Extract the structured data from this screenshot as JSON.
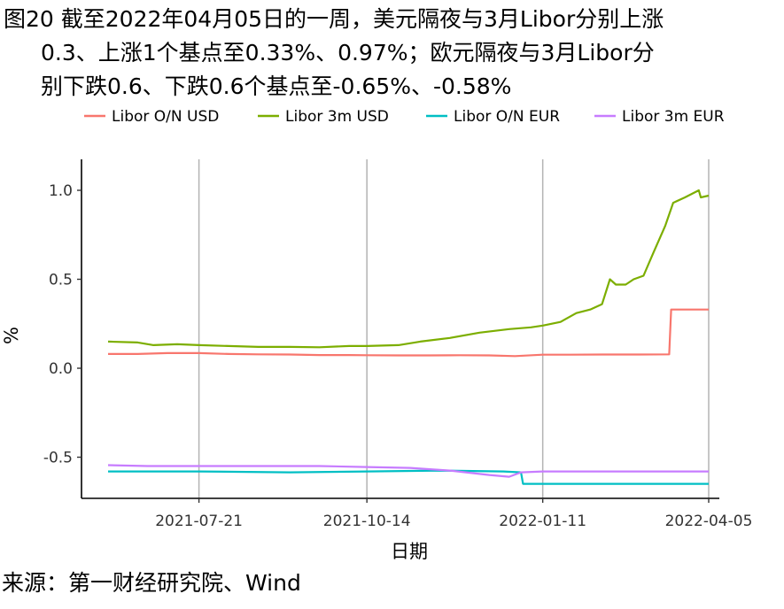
{
  "title": {
    "line1": "图20  截至2022年04月05日的一周，美元隔夜与3月Libor分别上涨",
    "line2": "0.3、上涨1个基点至0.33%、0.97%；欧元隔夜与3月Libor分",
    "line3": "别下跌0.6、下跌0.6个基点至-0.65%、-0.58%"
  },
  "source": "来源：第一财经研究院、Wind",
  "chart_data": {
    "type": "line",
    "xlabel": "日期",
    "ylabel": "%",
    "x_range": [
      "2021-06-05",
      "2022-04-05"
    ],
    "ylim": [
      -0.72,
      1.08
    ],
    "y_ticks": [
      -0.5,
      0.0,
      0.5,
      1.0
    ],
    "y_tick_labels": [
      "-0.5",
      "0.0",
      "0.5",
      "1.0"
    ],
    "x_ticks": [
      "2021-07-21",
      "2021-10-14",
      "2022-01-11",
      "2022-04-05"
    ],
    "grid": "vertical major lines only",
    "legend_position": "top",
    "series": [
      {
        "name": "Libor O/N USD",
        "color": "#F8766D",
        "points": [
          [
            "2021-06-05",
            0.08
          ],
          [
            "2021-06-20",
            0.08
          ],
          [
            "2021-07-05",
            0.085
          ],
          [
            "2021-07-21",
            0.085
          ],
          [
            "2021-08-05",
            0.08
          ],
          [
            "2021-08-20",
            0.078
          ],
          [
            "2021-09-05",
            0.077
          ],
          [
            "2021-09-20",
            0.074
          ],
          [
            "2021-10-05",
            0.074
          ],
          [
            "2021-10-14",
            0.073
          ],
          [
            "2021-10-30",
            0.072
          ],
          [
            "2021-11-15",
            0.072
          ],
          [
            "2021-11-30",
            0.073
          ],
          [
            "2021-12-15",
            0.072
          ],
          [
            "2021-12-28",
            0.068
          ],
          [
            "2022-01-11",
            0.076
          ],
          [
            "2022-01-25",
            0.076
          ],
          [
            "2022-02-10",
            0.077
          ],
          [
            "2022-03-01",
            0.077
          ],
          [
            "2022-03-16",
            0.078
          ],
          [
            "2022-03-17",
            0.33
          ],
          [
            "2022-03-25",
            0.33
          ],
          [
            "2022-04-05",
            0.33
          ]
        ]
      },
      {
        "name": "Libor 3m USD",
        "color": "#7CAE00",
        "points": [
          [
            "2021-06-05",
            0.15
          ],
          [
            "2021-06-20",
            0.145
          ],
          [
            "2021-06-28",
            0.13
          ],
          [
            "2021-07-10",
            0.135
          ],
          [
            "2021-07-21",
            0.13
          ],
          [
            "2021-08-05",
            0.125
          ],
          [
            "2021-08-20",
            0.12
          ],
          [
            "2021-09-05",
            0.12
          ],
          [
            "2021-09-20",
            0.118
          ],
          [
            "2021-10-05",
            0.125
          ],
          [
            "2021-10-14",
            0.125
          ],
          [
            "2021-10-30",
            0.13
          ],
          [
            "2021-11-10",
            0.15
          ],
          [
            "2021-11-25",
            0.17
          ],
          [
            "2021-12-10",
            0.2
          ],
          [
            "2021-12-25",
            0.22
          ],
          [
            "2022-01-05",
            0.23
          ],
          [
            "2022-01-11",
            0.24
          ],
          [
            "2022-01-20",
            0.26
          ],
          [
            "2022-01-28",
            0.31
          ],
          [
            "2022-02-04",
            0.33
          ],
          [
            "2022-02-10",
            0.36
          ],
          [
            "2022-02-14",
            0.5
          ],
          [
            "2022-02-17",
            0.47
          ],
          [
            "2022-02-22",
            0.47
          ],
          [
            "2022-02-26",
            0.5
          ],
          [
            "2022-03-03",
            0.52
          ],
          [
            "2022-03-08",
            0.65
          ],
          [
            "2022-03-14",
            0.8
          ],
          [
            "2022-03-18",
            0.93
          ],
          [
            "2022-03-24",
            0.96
          ],
          [
            "2022-03-31",
            1.0
          ],
          [
            "2022-04-01",
            0.96
          ],
          [
            "2022-04-05",
            0.97
          ]
        ]
      },
      {
        "name": "Libor O/N EUR",
        "color": "#00BFC4",
        "points": [
          [
            "2021-06-05",
            -0.58
          ],
          [
            "2021-07-21",
            -0.58
          ],
          [
            "2021-09-05",
            -0.585
          ],
          [
            "2021-10-14",
            -0.58
          ],
          [
            "2021-11-20",
            -0.575
          ],
          [
            "2021-12-22",
            -0.58
          ],
          [
            "2021-12-31",
            -0.585
          ],
          [
            "2022-01-01",
            -0.65
          ],
          [
            "2022-02-15",
            -0.65
          ],
          [
            "2022-04-05",
            -0.65
          ]
        ]
      },
      {
        "name": "Libor 3m EUR",
        "color": "#C77CFF",
        "points": [
          [
            "2021-06-05",
            -0.545
          ],
          [
            "2021-06-25",
            -0.55
          ],
          [
            "2021-07-21",
            -0.55
          ],
          [
            "2021-08-20",
            -0.55
          ],
          [
            "2021-09-20",
            -0.55
          ],
          [
            "2021-10-14",
            -0.555
          ],
          [
            "2021-11-05",
            -0.56
          ],
          [
            "2021-11-25",
            -0.575
          ],
          [
            "2021-12-15",
            -0.6
          ],
          [
            "2021-12-25",
            -0.61
          ],
          [
            "2021-12-31",
            -0.585
          ],
          [
            "2022-01-11",
            -0.58
          ],
          [
            "2022-02-15",
            -0.58
          ],
          [
            "2022-04-05",
            -0.58
          ]
        ]
      }
    ]
  }
}
